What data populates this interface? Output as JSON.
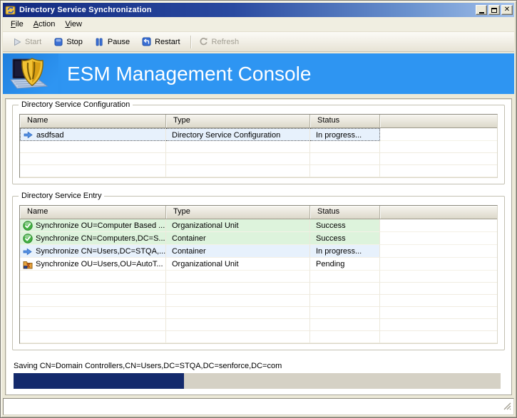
{
  "window": {
    "title": "Directory Service Synchronization",
    "controls": [
      {
        "name": "minimize"
      },
      {
        "name": "maximize"
      },
      {
        "name": "close",
        "glyph": "×"
      }
    ]
  },
  "menu": {
    "items": [
      "File",
      "Action",
      "View"
    ]
  },
  "toolbar": {
    "buttons": [
      {
        "label": "Start",
        "icon": "play-icon",
        "enabled": false
      },
      {
        "label": "Stop",
        "icon": "stop-icon",
        "enabled": true
      },
      {
        "label": "Pause",
        "icon": "pause-icon",
        "enabled": true
      },
      {
        "label": "Restart",
        "icon": "restart-icon",
        "enabled": true,
        "separator_after": true
      },
      {
        "label": "Refresh",
        "icon": "refresh-icon",
        "enabled": false
      }
    ]
  },
  "banner": {
    "title": "ESM Management Console"
  },
  "sections": {
    "configuration": {
      "title": "Directory Service Configuration",
      "columns": [
        "Name",
        "Type",
        "Status",
        ""
      ],
      "rows": [
        {
          "icon": "in-progress-arrow",
          "name": "asdfsad",
          "type": "Directory Service Configuration",
          "status": "In progress...",
          "state": "in-progress",
          "focused": true
        }
      ],
      "empty_rows": 3
    },
    "entry": {
      "title": "Directory Service Entry",
      "columns": [
        "Name",
        "Type",
        "Status",
        ""
      ],
      "rows": [
        {
          "icon": "success-check",
          "name": "Synchronize OU=Computer Based ...",
          "type": "Organizational Unit",
          "status": "Success",
          "state": "success",
          "focused": false
        },
        {
          "icon": "success-check",
          "name": "Synchronize CN=Computers,DC=S...",
          "type": "Container",
          "status": "Success",
          "state": "success",
          "focused": false
        },
        {
          "icon": "in-progress-arrow",
          "name": "Synchronize CN=Users,DC=STQA,...",
          "type": "Container",
          "status": "In progress...",
          "state": "in-progress",
          "focused": false
        },
        {
          "icon": "pending-task",
          "name": "Synchronize OU=Users,OU=AutoT...",
          "type": "Organizational Unit",
          "status": "Pending",
          "state": "pending",
          "focused": false
        }
      ],
      "empty_rows": 6
    }
  },
  "status": {
    "message": "Saving CN=Domain Controllers,CN=Users,DC=STQA,DC=senforce,DC=com",
    "progress_percent": 35
  },
  "colors": {
    "banner_blue": "#2e95f2",
    "titlebar_dark": "#132a80",
    "titlebar_light": "#a2c0ea",
    "success_row_bg": "#ddf3dc",
    "in_progress_row_bg": "#e7f1fc",
    "progress_fill": "#142a6c",
    "progress_track": "#d5d1c5"
  }
}
